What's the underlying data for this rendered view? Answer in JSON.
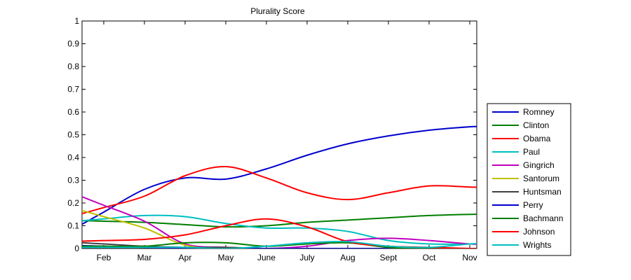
{
  "chart_data": {
    "type": "line",
    "title": "Plurality Score",
    "xlabel": "",
    "ylabel": "",
    "x": [
      "Feb",
      "Mar",
      "Apr",
      "May",
      "June",
      "July",
      "Aug",
      "Sept",
      "Oct",
      "Nov"
    ],
    "ylim": [
      0,
      1
    ],
    "yticks": [
      "0",
      "0.1",
      "0.2",
      "0.3",
      "0.4",
      "0.5",
      "0.6",
      "0.7",
      "0.8",
      "0.9",
      "1"
    ],
    "grid": false,
    "legend_position": "outside-right",
    "series": [
      {
        "name": "Romney",
        "color": "#0000cc",
        "values": [
          0.16,
          0.26,
          0.31,
          0.305,
          0.35,
          0.41,
          0.46,
          0.495,
          0.52,
          0.535
        ]
      },
      {
        "name": "Clinton",
        "color": "#007f00",
        "values": [
          0.12,
          0.115,
          0.105,
          0.095,
          0.1,
          0.115,
          0.125,
          0.135,
          0.145,
          0.15
        ]
      },
      {
        "name": "Obama",
        "color": "#ff0000",
        "values": [
          0.18,
          0.23,
          0.32,
          0.36,
          0.31,
          0.245,
          0.215,
          0.245,
          0.275,
          0.27
        ]
      },
      {
        "name": "Paul",
        "color": "#00bfbf",
        "values": [
          0.13,
          0.145,
          0.14,
          0.11,
          0.09,
          0.09,
          0.075,
          0.035,
          0.02,
          0.02
        ]
      },
      {
        "name": "Gingrich",
        "color": "#bf00bf",
        "values": [
          0.19,
          0.12,
          0.02,
          0.005,
          0.0,
          0.01,
          0.035,
          0.045,
          0.035,
          0.02
        ]
      },
      {
        "name": "Santorum",
        "color": "#bfbf00",
        "values": [
          0.14,
          0.09,
          0.015,
          0.0,
          0.0,
          0.0,
          0.0,
          0.0,
          0.0,
          0.0
        ]
      },
      {
        "name": "Huntsman",
        "color": "#404040",
        "values": [
          0.02,
          0.01,
          0.005,
          0.005,
          0.0,
          0.0,
          0.0,
          0.0,
          0.0,
          0.0
        ]
      },
      {
        "name": "Perry",
        "color": "#0000cc",
        "values": [
          0.01,
          0.005,
          0.0,
          0.0,
          0.0,
          0.0,
          0.0,
          0.0,
          0.0,
          0.0
        ]
      },
      {
        "name": "Bachmann",
        "color": "#007f00",
        "values": [
          0.01,
          0.01,
          0.025,
          0.025,
          0.01,
          0.02,
          0.025,
          0.005,
          0.0,
          0.0
        ]
      },
      {
        "name": "Johnson",
        "color": "#ff0000",
        "values": [
          0.035,
          0.04,
          0.06,
          0.1,
          0.13,
          0.095,
          0.03,
          0.01,
          0.005,
          0.0
        ]
      },
      {
        "name": "Wrights",
        "color": "#00bfbf",
        "values": [
          0.005,
          0.005,
          0.005,
          0.0,
          0.01,
          0.025,
          0.03,
          0.01,
          0.005,
          0.02
        ]
      }
    ]
  }
}
